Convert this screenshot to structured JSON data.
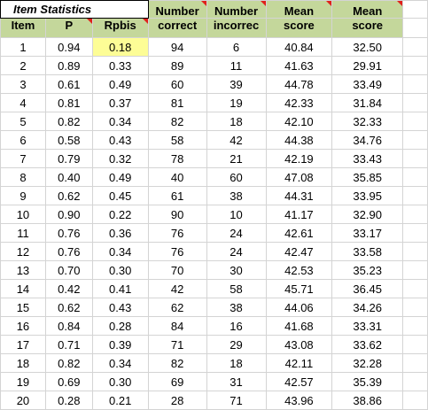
{
  "sheet": {
    "title": "Item Statistics",
    "headers_top": [
      "",
      "",
      "",
      "Number",
      "Number",
      "Mean",
      "Mean"
    ],
    "headers_bottom": [
      "Item",
      "P",
      "Rpbis",
      "correct",
      "incorrec",
      "score",
      "score"
    ],
    "rows": [
      [
        "1",
        "0.94",
        "0.18",
        "94",
        "6",
        "40.84",
        "32.50"
      ],
      [
        "2",
        "0.89",
        "0.33",
        "89",
        "11",
        "41.63",
        "29.91"
      ],
      [
        "3",
        "0.61",
        "0.49",
        "60",
        "39",
        "44.78",
        "33.49"
      ],
      [
        "4",
        "0.81",
        "0.37",
        "81",
        "19",
        "42.33",
        "31.84"
      ],
      [
        "5",
        "0.82",
        "0.34",
        "82",
        "18",
        "42.10",
        "32.33"
      ],
      [
        "6",
        "0.58",
        "0.43",
        "58",
        "42",
        "44.38",
        "34.76"
      ],
      [
        "7",
        "0.79",
        "0.32",
        "78",
        "21",
        "42.19",
        "33.43"
      ],
      [
        "8",
        "0.40",
        "0.49",
        "40",
        "60",
        "47.08",
        "35.85"
      ],
      [
        "9",
        "0.62",
        "0.45",
        "61",
        "38",
        "44.31",
        "33.95"
      ],
      [
        "10",
        "0.90",
        "0.22",
        "90",
        "10",
        "41.17",
        "32.90"
      ],
      [
        "11",
        "0.76",
        "0.36",
        "76",
        "24",
        "42.61",
        "33.17"
      ],
      [
        "12",
        "0.76",
        "0.34",
        "76",
        "24",
        "42.47",
        "33.58"
      ],
      [
        "13",
        "0.70",
        "0.30",
        "70",
        "30",
        "42.53",
        "35.23"
      ],
      [
        "14",
        "0.42",
        "0.41",
        "42",
        "58",
        "45.71",
        "36.45"
      ],
      [
        "15",
        "0.62",
        "0.43",
        "62",
        "38",
        "44.06",
        "34.26"
      ],
      [
        "16",
        "0.84",
        "0.28",
        "84",
        "16",
        "41.68",
        "33.31"
      ],
      [
        "17",
        "0.71",
        "0.39",
        "71",
        "29",
        "43.08",
        "33.62"
      ],
      [
        "18",
        "0.82",
        "0.34",
        "82",
        "18",
        "42.11",
        "32.28"
      ],
      [
        "19",
        "0.69",
        "0.30",
        "69",
        "31",
        "42.57",
        "35.39"
      ],
      [
        "20",
        "0.28",
        "0.21",
        "28",
        "71",
        "43.96",
        "38.86"
      ]
    ],
    "highlighted_cell": "0.18",
    "colors": {
      "header_fill": "#c4d79b",
      "header_text": "#404040",
      "highlight_fill": "#fdfd96",
      "comment_marker": "#e0201b",
      "gridline": "#d4d4d4"
    }
  }
}
